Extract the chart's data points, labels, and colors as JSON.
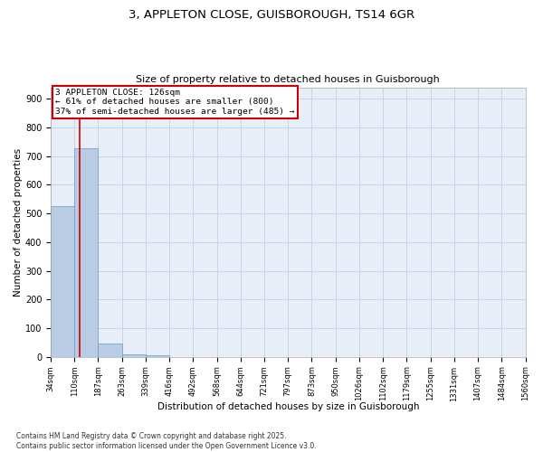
{
  "title_line1": "3, APPLETON CLOSE, GUISBOROUGH, TS14 6GR",
  "title_line2": "Size of property relative to detached houses in Guisborough",
  "xlabel": "Distribution of detached houses by size in Guisborough",
  "ylabel": "Number of detached properties",
  "bar_values": [
    527,
    727,
    48,
    8,
    5,
    0,
    0,
    0,
    0,
    0,
    0,
    0,
    0,
    0,
    0,
    0,
    0,
    0,
    0,
    0
  ],
  "bar_color": "#b8cce4",
  "bar_edge_color": "#6699cc",
  "tick_labels": [
    "34sqm",
    "110sqm",
    "187sqm",
    "263sqm",
    "339sqm",
    "416sqm",
    "492sqm",
    "568sqm",
    "644sqm",
    "721sqm",
    "797sqm",
    "873sqm",
    "950sqm",
    "1026sqm",
    "1102sqm",
    "1179sqm",
    "1255sqm",
    "1331sqm",
    "1407sqm",
    "1484sqm",
    "1560sqm"
  ],
  "property_label": "3 APPLETON CLOSE: 126sqm",
  "annotation_line2": "← 61% of detached houses are smaller (800)",
  "annotation_line3": "37% of semi-detached houses are larger (485) →",
  "ylim": [
    0,
    940
  ],
  "yticks": [
    0,
    100,
    200,
    300,
    400,
    500,
    600,
    700,
    800,
    900
  ],
  "grid_color": "#c8d4e8",
  "background_color": "#e8eef8",
  "vline_color": "#cc0000",
  "annotation_box_color": "#cc0000",
  "footer_line1": "Contains HM Land Registry data © Crown copyright and database right 2025.",
  "footer_line2": "Contains public sector information licensed under the Open Government Licence v3.0."
}
